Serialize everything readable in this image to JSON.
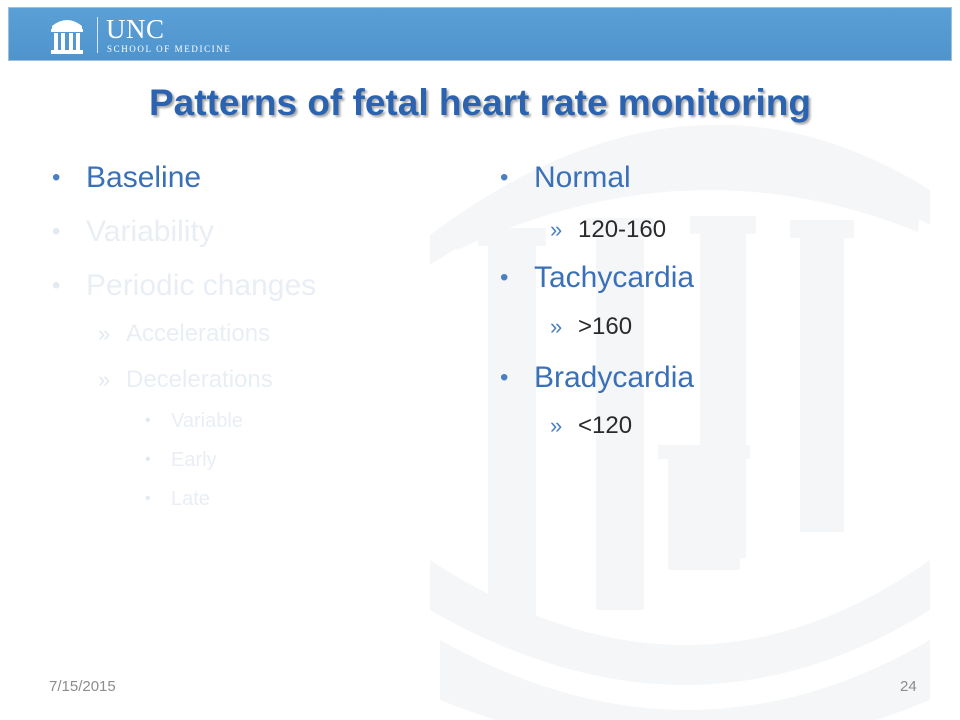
{
  "header": {
    "logo_title": "UNC",
    "logo_subtitle": "SCHOOL OF MEDICINE"
  },
  "slide": {
    "title": "Patterns of fetal heart rate monitoring",
    "left_column": {
      "bullet_1": "Baseline",
      "bullet_2": "Variability",
      "bullet_3": "Periodic changes",
      "sub_1": "Accelerations",
      "sub_2": "Decelerations",
      "subsub_1": "Variable",
      "subsub_2": "Early",
      "subsub_3": "Late"
    },
    "right_column": {
      "bullet_1": "Normal",
      "sub_1": "120-160",
      "bullet_2": "Tachycardia",
      "sub_2": ">160",
      "bullet_3": "Bradycardia",
      "sub_3": "<120"
    }
  },
  "footer": {
    "date": "7/15/2015",
    "page_number": "24"
  },
  "colors": {
    "header_bar": "#4f94cd",
    "title": "#2b63b0",
    "active_text": "#3a70b8",
    "faded_text": "#e9eef5"
  },
  "icons": {
    "logo": "old-well-icon",
    "watermark": "old-well-watermark"
  }
}
